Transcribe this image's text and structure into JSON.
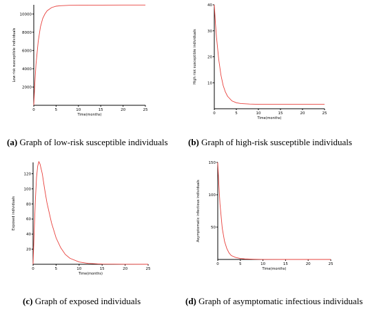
{
  "chart_data": [
    {
      "type": "line",
      "caption_letter": "(a)",
      "caption_text": "Graph of low-risk susceptible individuals",
      "xlabel": "Time(months)",
      "ylabel": "Low risk susceptible individuals",
      "xlim": [
        0,
        25
      ],
      "ylim": [
        0,
        11000
      ],
      "xticks": [
        0,
        5,
        10,
        15,
        20,
        25
      ],
      "yticks": [
        2000,
        4000,
        6000,
        8000,
        10000
      ],
      "series": [
        {
          "x": [
            0,
            0.25,
            0.5,
            1,
            1.5,
            2,
            2.5,
            3,
            4,
            5,
            6,
            8,
            10,
            15,
            20,
            25
          ],
          "y": [
            0,
            2500,
            4500,
            7000,
            8600,
            9500,
            10000,
            10350,
            10700,
            10850,
            10900,
            10950,
            10960,
            10970,
            10975,
            10980
          ]
        }
      ]
    },
    {
      "type": "line",
      "caption_letter": "(b)",
      "caption_text": "Graph of high-risk susceptible individuals",
      "xlabel": "Time(months)",
      "ylabel": "High risk susceptible individuals",
      "xlim": [
        0,
        25
      ],
      "ylim": [
        0,
        40
      ],
      "xticks": [
        0,
        5,
        10,
        15,
        20,
        25
      ],
      "yticks": [
        10,
        20,
        30,
        40
      ],
      "series": [
        {
          "x": [
            0,
            0.25,
            0.5,
            1,
            1.5,
            2,
            2.5,
            3,
            4,
            5,
            6,
            8,
            10,
            15,
            20,
            25
          ],
          "y": [
            40,
            33,
            27.5,
            19,
            13,
            9,
            6.5,
            4.8,
            3,
            2.3,
            2,
            1.8,
            1.7,
            1.7,
            1.7,
            1.7
          ]
        }
      ]
    },
    {
      "type": "line",
      "caption_letter": "(c)",
      "caption_text": "Graph of exposed individuals",
      "xlabel": "Time(months)",
      "ylabel": "Exposed individuals",
      "xlim": [
        0,
        25
      ],
      "ylim": [
        0,
        135
      ],
      "xticks": [
        0,
        5,
        10,
        15,
        20,
        25
      ],
      "yticks": [
        20,
        40,
        60,
        80,
        100,
        120
      ],
      "series": [
        {
          "x": [
            0,
            0.25,
            0.5,
            0.75,
            1,
            1.25,
            1.5,
            2,
            2.5,
            3,
            4,
            5,
            6,
            7,
            8,
            10,
            12,
            14,
            15,
            20,
            25
          ],
          "y": [
            0,
            45,
            85,
            115,
            130,
            136,
            133,
            120,
            100,
            82,
            55,
            35,
            22,
            13,
            8,
            3,
            1.2,
            0.5,
            0.3,
            0.1,
            0
          ]
        }
      ]
    },
    {
      "type": "line",
      "caption_letter": "(d)",
      "caption_text": "Graph of asymptomatic infectious individuals",
      "xlabel": "Time(months)",
      "ylabel": "Asymptomatic infectious individuals",
      "xlim": [
        0,
        25
      ],
      "ylim": [
        0,
        150
      ],
      "xticks": [
        0,
        5,
        10,
        15,
        20,
        25
      ],
      "yticks": [
        50,
        100,
        150
      ],
      "series": [
        {
          "x": [
            0,
            0.25,
            0.5,
            1,
            1.5,
            2,
            2.5,
            3,
            4,
            5,
            6,
            8,
            10,
            15,
            20,
            25
          ],
          "y": [
            150,
            115,
            85,
            48,
            28,
            17,
            10,
            6,
            3,
            1.5,
            0.8,
            0.3,
            0.1,
            0,
            0,
            0
          ]
        }
      ]
    }
  ]
}
